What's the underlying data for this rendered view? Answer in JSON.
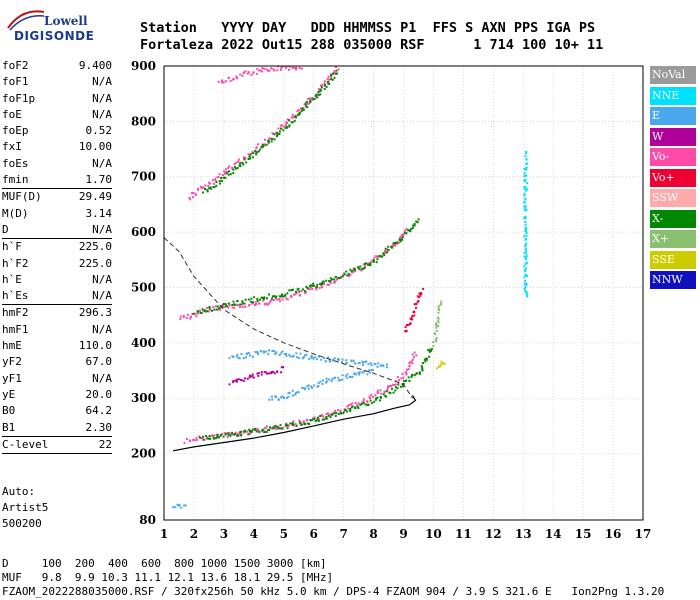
{
  "logo": {
    "top": "Lowell",
    "bottom": "DIGISONDE"
  },
  "header": {
    "line1": "Station   YYYY DAY   DDD HHMMSS P1  FFS S AXN PPS IGA PS",
    "line2": "Fortaleza 2022 Out15 288 035000 RSF      1 714 100 10+ 11"
  },
  "params": [
    {
      "k": "foF2",
      "v": "9.400"
    },
    {
      "k": "foF1",
      "v": "N/A"
    },
    {
      "k": "foF1p",
      "v": "N/A"
    },
    {
      "k": "foE",
      "v": "N/A"
    },
    {
      "k": "foEp",
      "v": "0.52"
    },
    {
      "k": "fxI",
      "v": "10.00"
    },
    {
      "k": "foEs",
      "v": "N/A"
    },
    {
      "k": "fmin",
      "v": "1.70",
      "sep_after": true
    },
    {
      "k": "MUF(D)",
      "v": "29.49"
    },
    {
      "k": "M(D)",
      "v": "3.14"
    },
    {
      "k": "D",
      "v": "N/A",
      "sep_after": true
    },
    {
      "k": "h`F",
      "v": "225.0"
    },
    {
      "k": "h`F2",
      "v": "225.0"
    },
    {
      "k": "h`E",
      "v": "N/A"
    },
    {
      "k": "h`Es",
      "v": "N/A",
      "sep_after": true
    },
    {
      "k": "hmF2",
      "v": "296.3"
    },
    {
      "k": "hmF1",
      "v": "N/A"
    },
    {
      "k": "hmE",
      "v": "110.0"
    },
    {
      "k": "yF2",
      "v": "67.0"
    },
    {
      "k": "yF1",
      "v": "N/A"
    },
    {
      "k": "yE",
      "v": "20.0"
    },
    {
      "k": "B0",
      "v": "64.2"
    },
    {
      "k": "B1",
      "v": "2.30",
      "sep_after": true
    },
    {
      "k": "C-level",
      "v": "22",
      "sep_after": true
    }
  ],
  "auto": [
    "Auto:",
    "Artist5",
    "500200"
  ],
  "footer": {
    "d_line": "D     100  200  400  600  800 1000 1500 3000 [km]",
    "muf_line": "MUF   9.8  9.9 10.3 11.1 12.1 13.6 18.1 29.5 [MHz]",
    "file_line": "FZAOM_2022288035000.RSF / 320fx256h 50 kHz 5.0 km / DPS-4 FZAOM 904 / 3.9 S 321.6 E   Ion2Png 1.3.20"
  },
  "legend": [
    {
      "label": "NoVal",
      "color": "#9a9a9a"
    },
    {
      "label": "NNE",
      "color": "#00e0ff"
    },
    {
      "label": "E",
      "color": "#4aa8ee"
    },
    {
      "label": "W",
      "color": "#b0009a"
    },
    {
      "label": "Vo-",
      "color": "#ff4aa8"
    },
    {
      "label": "Vo+",
      "color": "#ee0033"
    },
    {
      "label": "SSW",
      "color": "#ffaaaa"
    },
    {
      "label": "X-",
      "color": "#008800"
    },
    {
      "label": "X+",
      "color": "#88c070"
    },
    {
      "label": "SSE",
      "color": "#cccc00"
    },
    {
      "label": "NNW",
      "color": "#1010c0"
    }
  ],
  "chart_data": {
    "type": "scatter",
    "title": "",
    "xlabel": "",
    "ylabel": "",
    "xlim": [
      1,
      17
    ],
    "ylim": [
      80,
      900
    ],
    "x_ticks": [
      1,
      2,
      3,
      4,
      5,
      6,
      7,
      8,
      9,
      10,
      11,
      12,
      13,
      14,
      15,
      16,
      17
    ],
    "y_ticks": [
      80,
      200,
      300,
      400,
      500,
      600,
      700,
      800,
      900
    ],
    "grid": true,
    "legend_placement": "right",
    "traces": [
      {
        "name": "Vo-",
        "color": "#ff4aa8",
        "x": [
          1.7,
          2.5,
          3.5,
          4.5,
          5.5,
          6.5,
          7.5,
          8.3,
          9.0,
          9.4
        ],
        "y": [
          225,
          232,
          238,
          247,
          258,
          272,
          292,
          315,
          345,
          385
        ]
      },
      {
        "name": "X-",
        "color": "#008800",
        "x": [
          2.2,
          3.0,
          4.0,
          5.0,
          6.0,
          7.0,
          8.0,
          8.8,
          9.6,
          9.9
        ],
        "y": [
          228,
          234,
          242,
          250,
          262,
          277,
          297,
          322,
          355,
          395
        ]
      },
      {
        "name": "Vo-",
        "color": "#ff4aa8",
        "x": [
          1.5,
          2.5,
          3.5,
          4.5,
          5.5,
          6.5,
          7.5,
          8.5,
          9.2
        ],
        "y": [
          445,
          462,
          470,
          475,
          490,
          510,
          535,
          570,
          610
        ]
      },
      {
        "name": "X-",
        "color": "#008800",
        "x": [
          2.0,
          3.0,
          4.0,
          5.0,
          6.0,
          7.0,
          8.0,
          8.8,
          9.5
        ],
        "y": [
          455,
          470,
          480,
          490,
          505,
          525,
          550,
          585,
          625
        ]
      },
      {
        "name": "Vo-",
        "color": "#ff4aa8",
        "x": [
          1.8,
          2.5,
          3.5,
          4.5,
          5.5,
          6.2,
          6.8
        ],
        "y": [
          665,
          690,
          730,
          770,
          820,
          860,
          900
        ]
      },
      {
        "name": "X-",
        "color": "#008800",
        "x": [
          2.3,
          3.0,
          4.0,
          5.0,
          6.0,
          6.8
        ],
        "y": [
          675,
          700,
          745,
          790,
          845,
          895
        ]
      },
      {
        "name": "Vo-",
        "color": "#ff4aa8",
        "x": [
          2.8,
          3.5,
          4.3,
          5.0,
          5.6
        ],
        "y": [
          870,
          885,
          895,
          898,
          900
        ]
      },
      {
        "name": "E",
        "color": "#4aa8ee",
        "x": [
          4.5,
          5.0,
          5.5,
          6.0,
          6.5,
          7.0,
          7.5,
          8.0
        ],
        "y": [
          300,
          305,
          315,
          325,
          335,
          340,
          345,
          350
        ]
      },
      {
        "name": "E",
        "color": "#4aa8ee",
        "x": [
          3.2,
          4.5,
          6.0,
          7.5,
          8.5
        ],
        "y": [
          375,
          385,
          375,
          365,
          360
        ]
      },
      {
        "name": "Vo+",
        "color": "#ee0033",
        "x": [
          9.0,
          9.2,
          9.4,
          9.6
        ],
        "y": [
          420,
          440,
          470,
          500
        ]
      },
      {
        "name": "W",
        "color": "#b0009a",
        "x": [
          3.2,
          3.8,
          4.4,
          5.0
        ],
        "y": [
          330,
          340,
          348,
          355
        ]
      },
      {
        "name": "X+",
        "color": "#88c070",
        "x": [
          10.0,
          10.1,
          10.2
        ],
        "y": [
          400,
          440,
          480
        ]
      },
      {
        "name": "SSE",
        "color": "#cccc00",
        "x": [
          10.1,
          10.2,
          10.4
        ],
        "y": [
          355,
          365,
          370
        ]
      },
      {
        "name": "E",
        "color": "#4aa8ee",
        "x": [
          1.3,
          1.5,
          1.7
        ],
        "y": [
          108,
          108,
          109
        ]
      },
      {
        "name": "NNE",
        "color": "#00e0ff",
        "x": [
          13.05,
          13.05,
          13.05
        ],
        "y": [
          485,
          515,
          750
        ]
      }
    ],
    "profile": {
      "x": [
        1.3,
        2.0,
        3.0,
        4.0,
        5.0,
        6.0,
        7.0,
        8.0,
        8.7,
        9.2,
        9.4,
        9.3
      ],
      "y": [
        205,
        212,
        220,
        228,
        238,
        250,
        262,
        272,
        282,
        288,
        296,
        305
      ]
    },
    "muf_curve": {
      "x": [
        1.0,
        1.5,
        2.0,
        3.0,
        4.0,
        5.0,
        6.0,
        7.0,
        8.0,
        9.0,
        9.3
      ],
      "y": [
        590,
        565,
        520,
        460,
        425,
        400,
        380,
        362,
        345,
        325,
        300
      ]
    }
  }
}
